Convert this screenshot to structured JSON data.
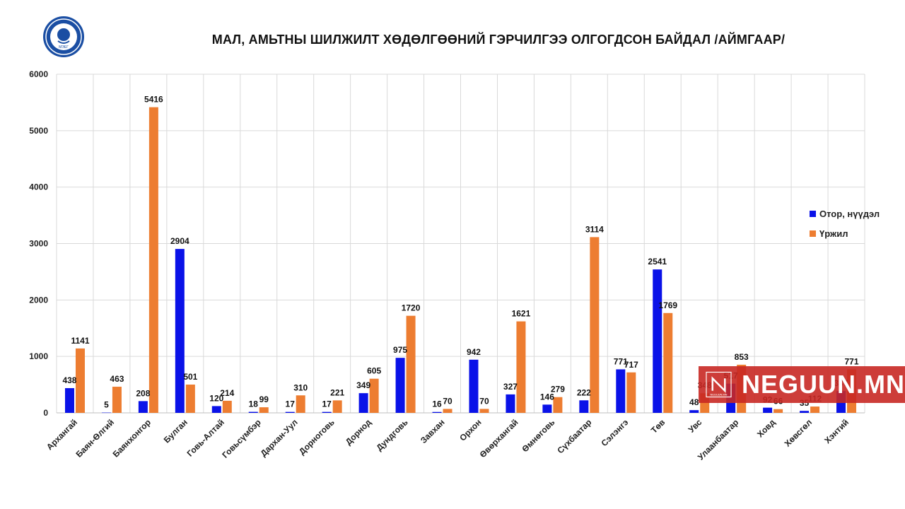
{
  "title": "МАЛ, АМЬТНЫ ШИЛЖИЛТ ХӨДӨЛГӨӨНИЙ ГЭРЧИЛГЭЭ ОЛГОГДСОН БАЙДАЛ /АЙМГААР/",
  "logo": {
    "text": "МЭЕГ",
    "icon": "seal-logo-icon",
    "color": "#1a4ea3"
  },
  "watermark": {
    "text": "NEGUUN.MN",
    "subtext": "NEGUUN.MN",
    "color": "#c8281f"
  },
  "chart_data": {
    "type": "bar",
    "categories": [
      "Архангай",
      "Баян-Өлгий",
      "Баянхонгор",
      "Булган",
      "Говь-Алтай",
      "Говьсүмбэр",
      "Дархан-Уул",
      "Дорноговь",
      "Дорнод",
      "Дундговь",
      "Завхан",
      "Орхон",
      "Өвөрхангай",
      "Өмнөговь",
      "Сүхбаатар",
      "Сэлэнгэ",
      "Төв",
      "Увс",
      "Улаанбаатар",
      "Ховд",
      "Хөвсгөл",
      "Хэнтий"
    ],
    "series": [
      {
        "name": "Отор, нүүдэл",
        "color": "#0a12e8",
        "values": [
          438,
          5,
          208,
          2904,
          120,
          18,
          17,
          17,
          349,
          975,
          16,
          942,
          327,
          146,
          222,
          771,
          2541,
          48,
          517,
          92,
          35,
          387
        ],
        "labels": [
          "438",
          "5",
          "208",
          "2904",
          "120",
          "18",
          "17",
          "17",
          "349",
          "975",
          "16",
          "942",
          "327",
          "146",
          "222",
          "771",
          "2541",
          "48",
          "517",
          "92",
          "35",
          "387"
        ]
      },
      {
        "name": "Үржил",
        "color": "#ed7d31",
        "values": [
          1141,
          463,
          5416,
          501,
          214,
          99,
          310,
          221,
          605,
          1720,
          70,
          70,
          1621,
          279,
          3114,
          717,
          1769,
          348,
          853,
          66,
          112,
          771
        ],
        "labels": [
          "1141",
          "463",
          "5416",
          "501",
          "214",
          "99",
          "310",
          "221",
          "605",
          "1720",
          "70",
          "70",
          "1621",
          "279",
          "3114",
          "717",
          "1769",
          "348",
          "853",
          "66",
          "112",
          "771"
        ]
      }
    ],
    "yticks": [
      "0",
      "1000",
      "2000",
      "3000",
      "4000",
      "5000",
      "6000"
    ],
    "ylim": [
      0,
      6000
    ],
    "xlabel": "",
    "ylabel": "",
    "grid": true,
    "legend": "right"
  }
}
